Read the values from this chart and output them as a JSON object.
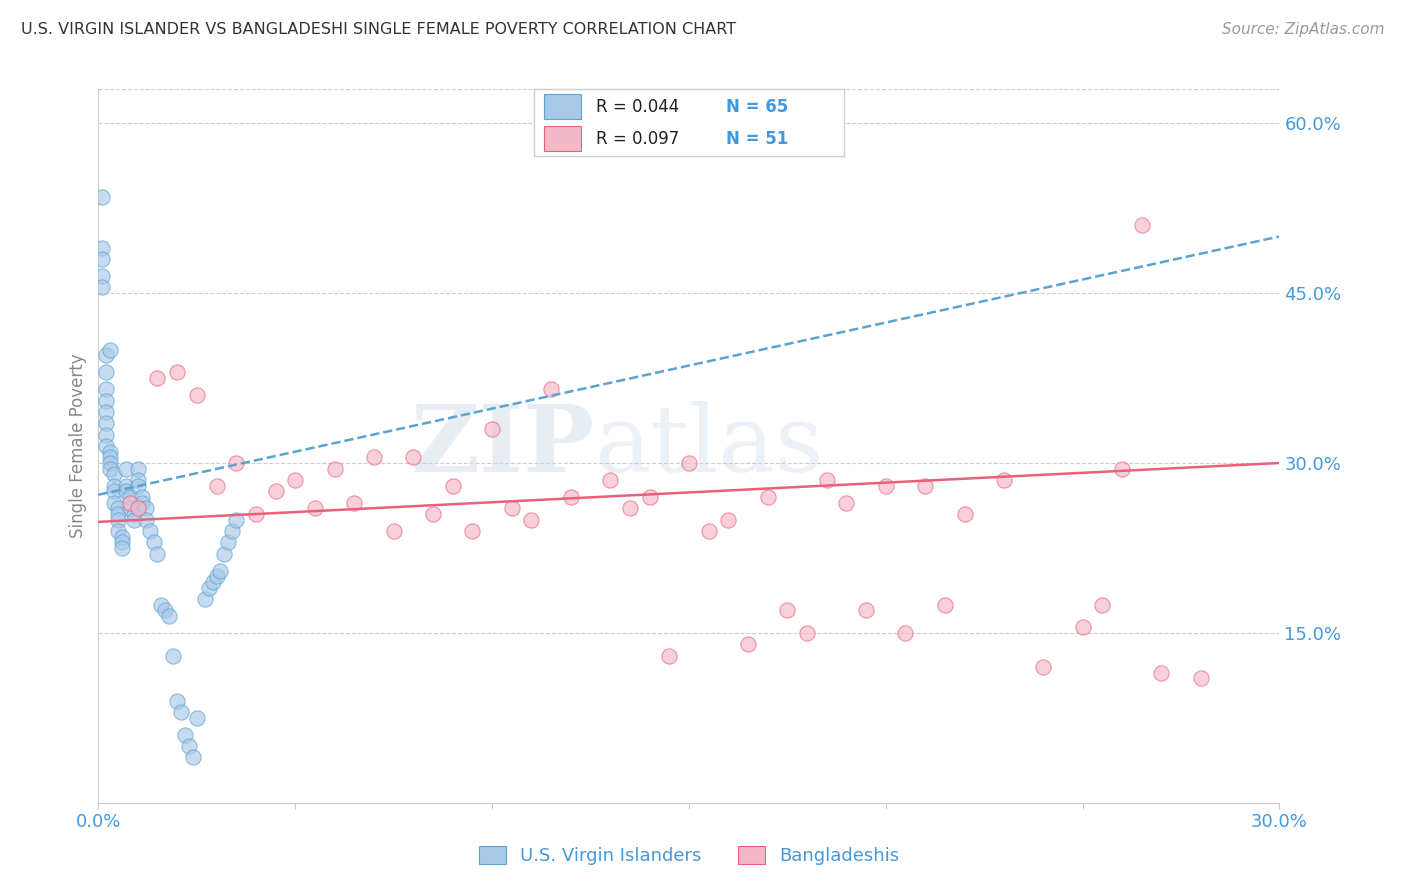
{
  "title": "U.S. VIRGIN ISLANDER VS BANGLADESHI SINGLE FEMALE POVERTY CORRELATION CHART",
  "source": "Source: ZipAtlas.com",
  "ylabel": "Single Female Poverty",
  "xlim": [
    0.0,
    0.3
  ],
  "ylim": [
    0.0,
    0.63
  ],
  "y_ticks": [
    0.15,
    0.3,
    0.45,
    0.6
  ],
  "y_tick_labels": [
    "15.0%",
    "30.0%",
    "45.0%",
    "60.0%"
  ],
  "x_ticks": [
    0.0,
    0.05,
    0.1,
    0.15,
    0.2,
    0.25,
    0.3
  ],
  "x_tick_labels": [
    "0.0%",
    "",
    "",
    "",
    "",
    "",
    "30.0%"
  ],
  "blue_color": "#a8c8e8",
  "pink_color": "#f4b8c8",
  "trendline_blue_color": "#5ba3d0",
  "trendline_pink_color": "#e8607a",
  "axis_label_color": "#4499dd",
  "grid_color": "#cccccc",
  "blue_x": [
    0.001,
    0.001,
    0.001,
    0.001,
    0.001,
    0.002,
    0.002,
    0.002,
    0.002,
    0.002,
    0.002,
    0.002,
    0.002,
    0.003,
    0.003,
    0.003,
    0.003,
    0.003,
    0.004,
    0.004,
    0.004,
    0.004,
    0.005,
    0.005,
    0.005,
    0.005,
    0.006,
    0.006,
    0.006,
    0.007,
    0.007,
    0.007,
    0.008,
    0.008,
    0.009,
    0.009,
    0.01,
    0.01,
    0.01,
    0.011,
    0.011,
    0.012,
    0.012,
    0.013,
    0.014,
    0.015,
    0.016,
    0.017,
    0.018,
    0.019,
    0.02,
    0.021,
    0.022,
    0.023,
    0.024,
    0.025,
    0.027,
    0.028,
    0.029,
    0.03,
    0.031,
    0.032,
    0.033,
    0.034,
    0.035
  ],
  "blue_y": [
    0.535,
    0.49,
    0.48,
    0.465,
    0.455,
    0.395,
    0.38,
    0.365,
    0.355,
    0.345,
    0.335,
    0.325,
    0.315,
    0.4,
    0.31,
    0.305,
    0.3,
    0.295,
    0.29,
    0.28,
    0.275,
    0.265,
    0.26,
    0.255,
    0.25,
    0.24,
    0.235,
    0.23,
    0.225,
    0.295,
    0.28,
    0.275,
    0.27,
    0.26,
    0.255,
    0.25,
    0.295,
    0.285,
    0.28,
    0.27,
    0.265,
    0.26,
    0.25,
    0.24,
    0.23,
    0.22,
    0.175,
    0.17,
    0.165,
    0.13,
    0.09,
    0.08,
    0.06,
    0.05,
    0.04,
    0.075,
    0.18,
    0.19,
    0.195,
    0.2,
    0.205,
    0.22,
    0.23,
    0.24,
    0.25
  ],
  "pink_x": [
    0.008,
    0.01,
    0.015,
    0.02,
    0.025,
    0.03,
    0.035,
    0.04,
    0.045,
    0.05,
    0.055,
    0.06,
    0.065,
    0.07,
    0.075,
    0.08,
    0.085,
    0.09,
    0.095,
    0.1,
    0.105,
    0.11,
    0.115,
    0.12,
    0.13,
    0.135,
    0.14,
    0.145,
    0.15,
    0.155,
    0.16,
    0.165,
    0.17,
    0.175,
    0.18,
    0.185,
    0.19,
    0.195,
    0.2,
    0.205,
    0.21,
    0.215,
    0.22,
    0.23,
    0.24,
    0.25,
    0.255,
    0.26,
    0.265,
    0.27,
    0.28
  ],
  "pink_y": [
    0.265,
    0.26,
    0.375,
    0.38,
    0.36,
    0.28,
    0.3,
    0.255,
    0.275,
    0.285,
    0.26,
    0.295,
    0.265,
    0.305,
    0.24,
    0.305,
    0.255,
    0.28,
    0.24,
    0.33,
    0.26,
    0.25,
    0.365,
    0.27,
    0.285,
    0.26,
    0.27,
    0.13,
    0.3,
    0.24,
    0.25,
    0.14,
    0.27,
    0.17,
    0.15,
    0.285,
    0.265,
    0.17,
    0.28,
    0.15,
    0.28,
    0.175,
    0.255,
    0.285,
    0.12,
    0.155,
    0.175,
    0.295,
    0.51,
    0.115,
    0.11
  ],
  "blue_trend_x0": 0.0,
  "blue_trend_y0": 0.272,
  "blue_trend_x1": 0.3,
  "blue_trend_y1": 0.5,
  "pink_trend_x0": 0.0,
  "pink_trend_y0": 0.248,
  "pink_trend_x1": 0.3,
  "pink_trend_y1": 0.3
}
